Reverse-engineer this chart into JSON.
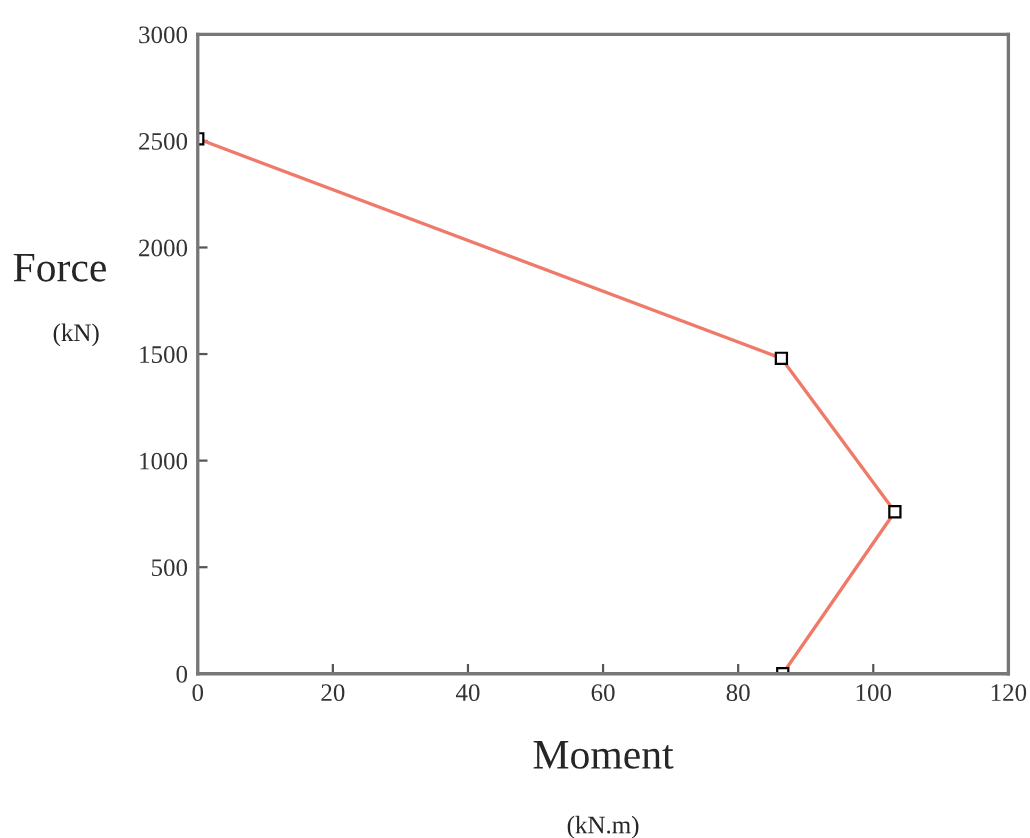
{
  "chart_data": {
    "type": "line",
    "xlabel": "Moment",
    "ylabel": "Force",
    "annotations": [
      "(kN)",
      "(kN.m)"
    ],
    "series": [
      {
        "color": "#f07a68",
        "x": [
          0,
          86.4,
          103.2,
          86.6
        ],
        "values": [
          2510,
          1480,
          760,
          0
        ]
      }
    ],
    "xlim": [
      0,
      120
    ],
    "xticks": [
      0,
      20,
      40,
      60,
      80,
      100,
      120
    ],
    "ylim": [
      0,
      3000
    ],
    "yticks": [
      0,
      500,
      1000,
      1500,
      2000,
      2500,
      3000
    ],
    "marker": "square",
    "line_style": "solid",
    "grid": false,
    "legend": false
  }
}
